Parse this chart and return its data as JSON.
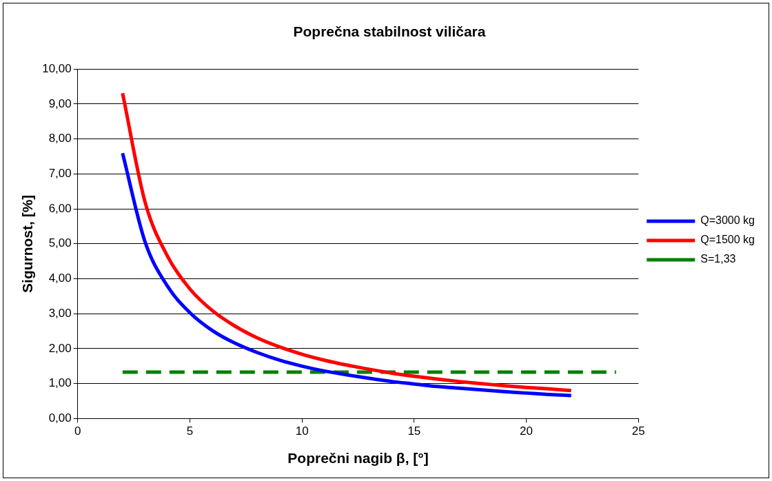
{
  "chart_data": {
    "type": "line",
    "title": "Poprečna stabilnost viličara",
    "xlabel": "Poprečni nagib β, [°]",
    "ylabel": "Sigurnost, [%]",
    "x": [
      2,
      3,
      4,
      5,
      6,
      7,
      8,
      9,
      10,
      11,
      12,
      13,
      14,
      15,
      16,
      17,
      18,
      19,
      20,
      21,
      22
    ],
    "series": [
      {
        "name": "Q=3000 kg",
        "color": "#0000ff",
        "line_style": "solid",
        "values": [
          7.59,
          5.06,
          3.79,
          3.03,
          2.52,
          2.16,
          1.89,
          1.67,
          1.5,
          1.36,
          1.25,
          1.15,
          1.06,
          0.99,
          0.92,
          0.87,
          0.82,
          0.77,
          0.73,
          0.69,
          0.66
        ]
      },
      {
        "name": "Q=1500 kg",
        "color": "#ff0000",
        "line_style": "solid",
        "values": [
          9.31,
          6.2,
          4.65,
          3.71,
          3.09,
          2.65,
          2.31,
          2.05,
          1.84,
          1.67,
          1.53,
          1.41,
          1.3,
          1.21,
          1.13,
          1.06,
          1.0,
          0.94,
          0.89,
          0.85,
          0.8
        ]
      },
      {
        "name": "S=1,33",
        "color": "#008000",
        "line_style": "dashed",
        "x": [
          2,
          24
        ],
        "values": [
          1.33,
          1.33
        ]
      }
    ],
    "xlim": [
      0,
      25
    ],
    "xticks": [
      0,
      5,
      10,
      15,
      20,
      25
    ],
    "ylim": [
      0,
      10
    ],
    "yticks": [
      {
        "value": 0,
        "label": "0,00"
      },
      {
        "value": 1,
        "label": "1,00"
      },
      {
        "value": 2,
        "label": "2,00"
      },
      {
        "value": 3,
        "label": "3,00"
      },
      {
        "value": 4,
        "label": "4,00"
      },
      {
        "value": 5,
        "label": "5,00"
      },
      {
        "value": 6,
        "label": "6,00"
      },
      {
        "value": 7,
        "label": "7,00"
      },
      {
        "value": 8,
        "label": "8,00"
      },
      {
        "value": 9,
        "label": "9,00"
      },
      {
        "value": 10,
        "label": "10,00"
      }
    ],
    "grid": "y",
    "legend": "right",
    "marker": "none"
  }
}
